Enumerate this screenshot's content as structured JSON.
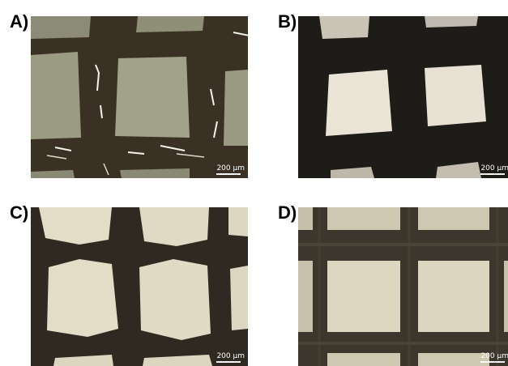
{
  "panels": [
    {
      "label": "A)",
      "scale": "200 µm"
    },
    {
      "label": "B)",
      "scale": "200 µm"
    },
    {
      "label": "C)",
      "scale": "200 µm"
    },
    {
      "label": "D)",
      "scale": "200 µm"
    }
  ],
  "colors": {
    "panel_a_strands": "#3a3124",
    "panel_a_openings": "#9b9b83",
    "panel_b_background": "#1e1c18",
    "panel_b_openings": "#e9e4d6",
    "panel_c_strands": "#2f2a21",
    "panel_c_openings": "#e3dcc6",
    "panel_d_strands": "#3b372c",
    "panel_d_openings": "#ded7bf"
  }
}
